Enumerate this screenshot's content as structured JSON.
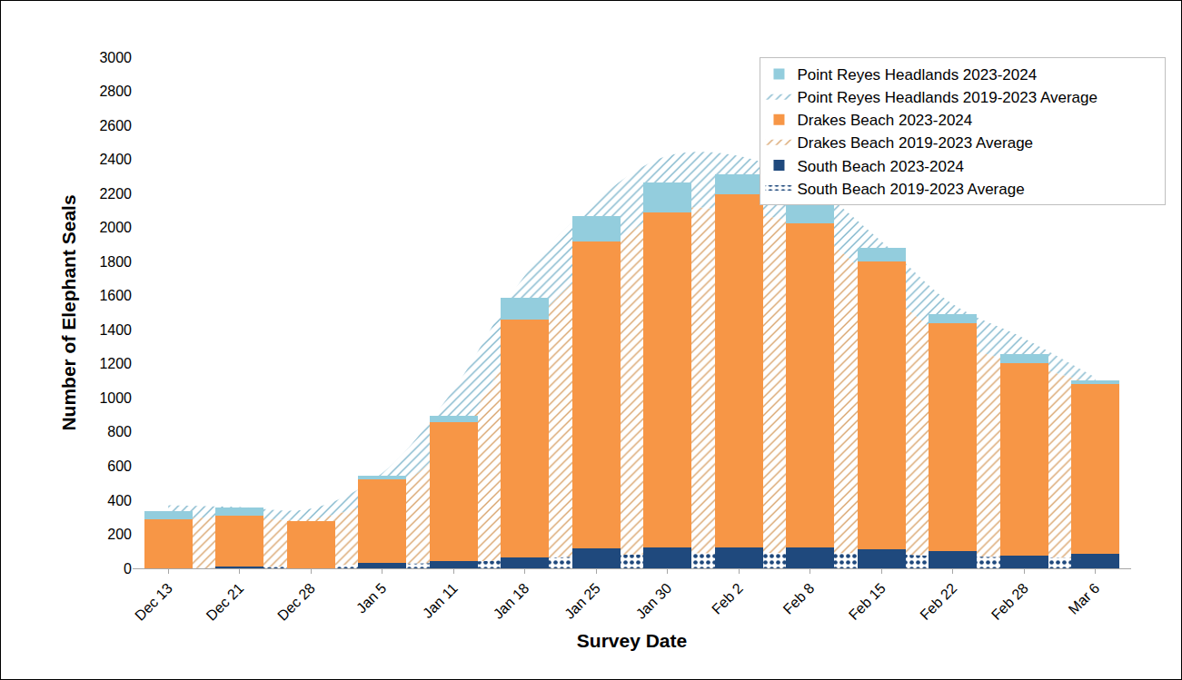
{
  "chart_data": {
    "type": "bar",
    "stacked": true,
    "grid": false,
    "legend": "top right",
    "x_label": "Survey Date",
    "y_label": "Number of Elephant Seals",
    "categories": [
      "Dec 13",
      "Dec 21",
      "Dec 28",
      "Jan 5",
      "Jan 11",
      "Jan 18",
      "Jan 25",
      "Jan 30",
      "Feb 2",
      "Feb 8",
      "Feb 15",
      "Feb 22",
      "Feb 28",
      "Mar 6"
    ],
    "ylim": [
      0,
      3000
    ],
    "yticks": [
      0,
      200,
      400,
      600,
      800,
      1000,
      1200,
      1400,
      1600,
      1800,
      2000,
      2200,
      2400,
      2600,
      2800,
      3000
    ],
    "series": [
      {
        "name": "Point Reyes Headlands 2023-2024",
        "type": "bar",
        "color": "#93CDDD",
        "values": [
          45,
          45,
          0,
          25,
          35,
          130,
          145,
          175,
          120,
          110,
          80,
          50,
          50,
          25
        ]
      },
      {
        "name": "Point Reyes Headlands 2019-2023 Average",
        "type": "area",
        "marker": "hatch",
        "color": "#7FB6CC",
        "values": [
          75,
          60,
          60,
          140,
          290,
          340,
          360,
          320,
          330,
          260,
          270,
          220,
          150,
          40
        ]
      },
      {
        "name": "Drakes Beach 2023-2024",
        "type": "bar",
        "color": "#F79646",
        "values": [
          290,
          300,
          275,
          490,
          820,
          1395,
          1805,
          1970,
          2075,
          1905,
          1690,
          1340,
          1130,
          995
        ]
      },
      {
        "name": "Drakes Beach 2019-2023 Average",
        "type": "area",
        "marker": "hatch",
        "color": "#D9A46C",
        "values": [
          295,
          295,
          275,
          395,
          725,
          1325,
          1725,
          2015,
          2000,
          1900,
          1565,
          1260,
          1135,
          1020
        ]
      },
      {
        "name": "South Beach 2023-2024",
        "type": "bar",
        "color": "#1F497D",
        "values": [
          0,
          10,
          0,
          30,
          40,
          65,
          115,
          120,
          120,
          120,
          110,
          100,
          75,
          85
        ]
      },
      {
        "name": "South Beach 2019-2023 Average",
        "type": "area",
        "marker": "dots",
        "color": "#1F497D",
        "values": [
          0,
          5,
          15,
          25,
          35,
          55,
          75,
          85,
          90,
          90,
          85,
          70,
          65,
          60
        ]
      }
    ]
  }
}
